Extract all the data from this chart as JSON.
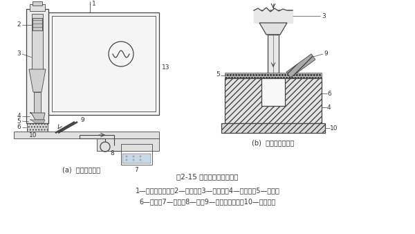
{
  "bg_color": "#ffffff",
  "fig_width": 6.0,
  "fig_height": 3.38,
  "dpi": 100,
  "title_text": "图2-15 超声加工的基本装置",
  "caption_line1": "1—超声波发生器；2—换能器；3—变幅杆；4—工具头；5—磨料；",
  "caption_line2": "6—工件；7—容器；8—泵；9—磨料供给管头；10—工作台；",
  "label_a": "(a)  超声加工装置",
  "label_b": "(b)  加工区的放大图",
  "line_color": "#444444",
  "text_color": "#333333",
  "title_fontsize": 7.5,
  "caption_fontsize": 7.0,
  "label_fontsize": 7.0,
  "num_fontsize": 6.5
}
